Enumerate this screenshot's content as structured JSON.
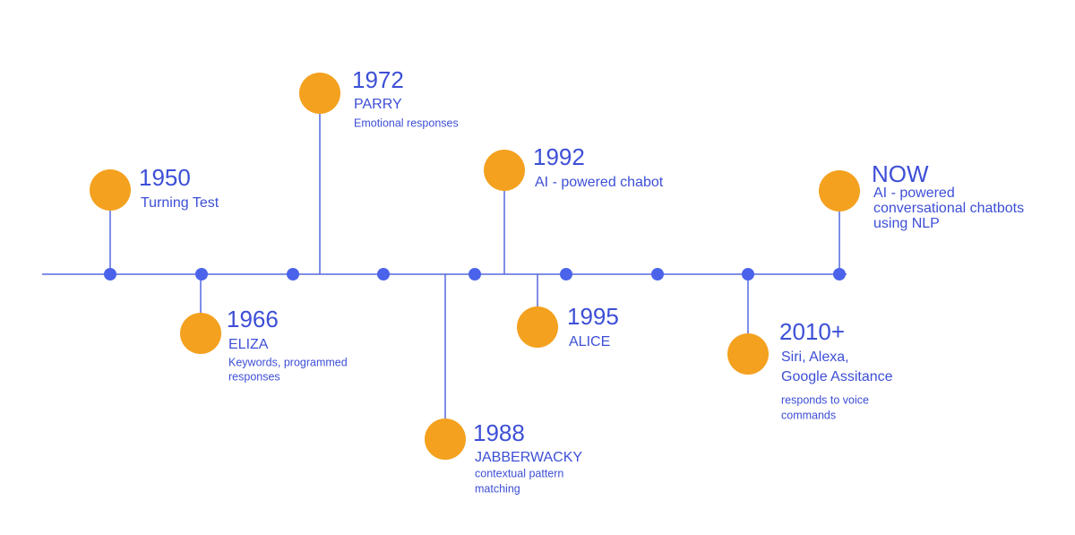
{
  "events": [
    {
      "year": "1950",
      "lines": [
        "Turning Test"
      ],
      "description": []
    },
    {
      "year": "1966",
      "lines": [
        "ELIZA"
      ],
      "description": [
        "Keywords, programmed",
        "responses"
      ]
    },
    {
      "year": "1972",
      "lines": [
        "PARRY"
      ],
      "description": [
        "Emotional responses"
      ]
    },
    {
      "year": "1988",
      "lines": [
        "JABBERWACKY"
      ],
      "description": [
        "contextual pattern",
        "matching"
      ]
    },
    {
      "year": "1992",
      "lines": [
        "AI - powered chabot"
      ],
      "description": []
    },
    {
      "year": "1995",
      "lines": [
        "ALICE"
      ],
      "description": []
    },
    {
      "year": "2010+",
      "lines": [
        "Siri, Alexa,",
        "Google Assitance"
      ],
      "description": [
        "responds to voice",
        "commands"
      ]
    },
    {
      "year": "NOW",
      "lines": [
        "AI - powered",
        "conversational chatbots",
        "using NLP"
      ],
      "description": []
    }
  ]
}
